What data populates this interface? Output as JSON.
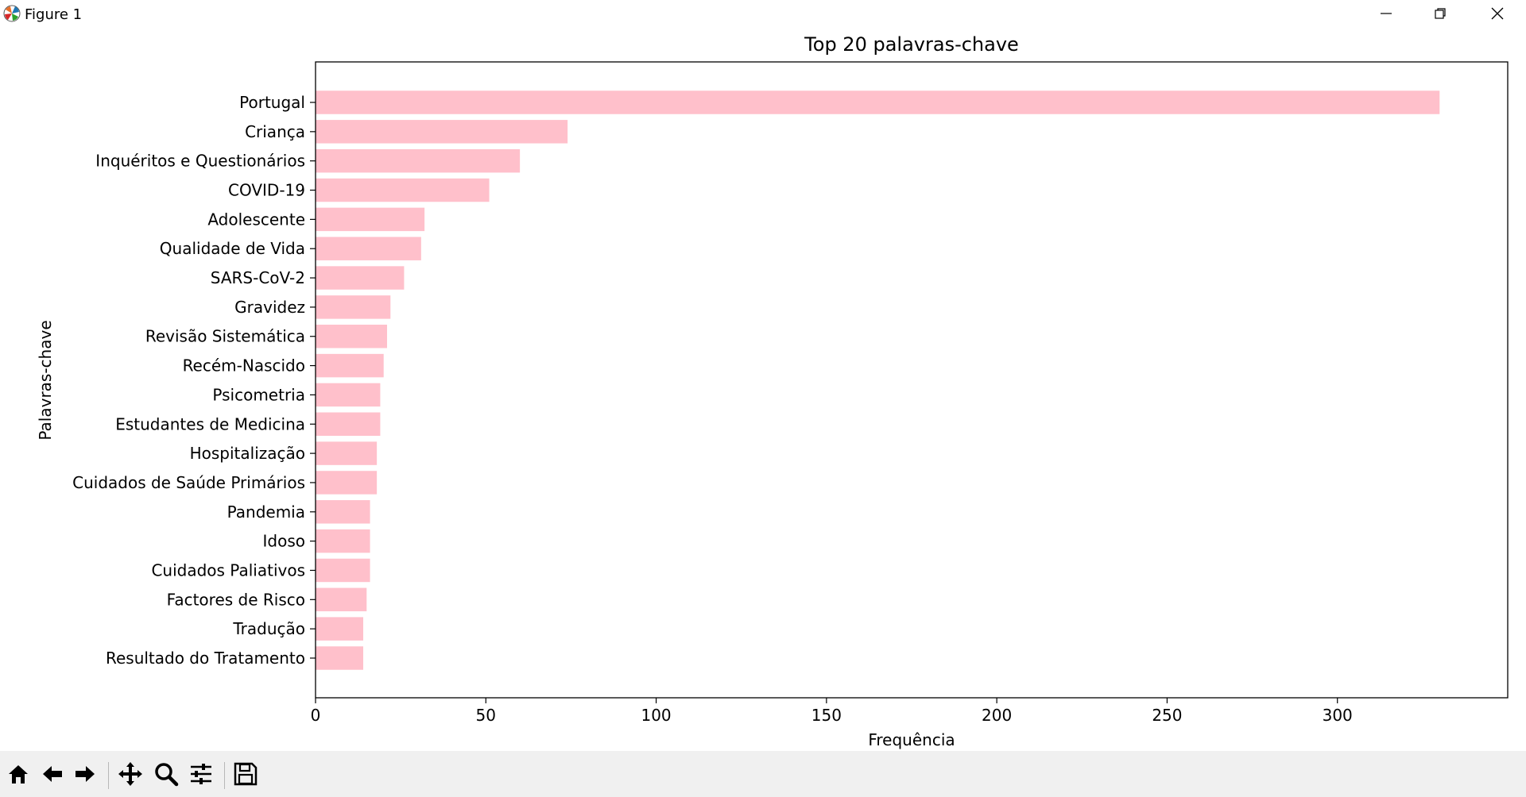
{
  "window": {
    "title": "Figure 1"
  },
  "icons": {
    "app": "matplotlib-logo-icon",
    "minimize": "minimize-icon",
    "restore": "restore-icon",
    "close": "close-icon"
  },
  "toolbar": {
    "buttons": [
      {
        "name": "home-button",
        "icon": "home-icon"
      },
      {
        "name": "back-button",
        "icon": "arrow-left-icon"
      },
      {
        "name": "forward-button",
        "icon": "arrow-right-icon"
      },
      {
        "name": "pan-button",
        "icon": "move-icon"
      },
      {
        "name": "zoom-button",
        "icon": "zoom-icon"
      },
      {
        "name": "configure-subplots-button",
        "icon": "sliders-icon"
      },
      {
        "name": "save-button",
        "icon": "save-icon"
      }
    ]
  },
  "chart_data": {
    "type": "bar",
    "orientation": "horizontal",
    "title": "Top 20 palavras-chave",
    "xlabel": "Frequência",
    "ylabel": "Palavras-chave",
    "xlim": [
      0,
      350
    ],
    "xticks": [
      0,
      50,
      100,
      150,
      200,
      250,
      300
    ],
    "xtick_labels": [
      "0",
      "50",
      "100",
      "150",
      "200",
      "250",
      "300"
    ],
    "bar_color": "#ffc0cb",
    "categories": [
      "Portugal",
      "Criança",
      "Inquéritos e Questionários",
      "COVID-19",
      "Adolescente",
      "Qualidade de Vida",
      "SARS-CoV-2",
      "Gravidez",
      "Revisão Sistemática",
      "Recém-Nascido",
      "Psicometria",
      "Estudantes de Medicina",
      "Hospitalização",
      "Cuidados de Saúde Primários",
      "Pandemia",
      "Idoso",
      "Cuidados Paliativos",
      "Factores de Risco",
      "Tradução",
      "Resultado do Tratamento"
    ],
    "values": [
      330,
      74,
      60,
      51,
      32,
      31,
      26,
      22,
      21,
      20,
      19,
      19,
      18,
      18,
      16,
      16,
      16,
      15,
      14,
      14
    ]
  }
}
